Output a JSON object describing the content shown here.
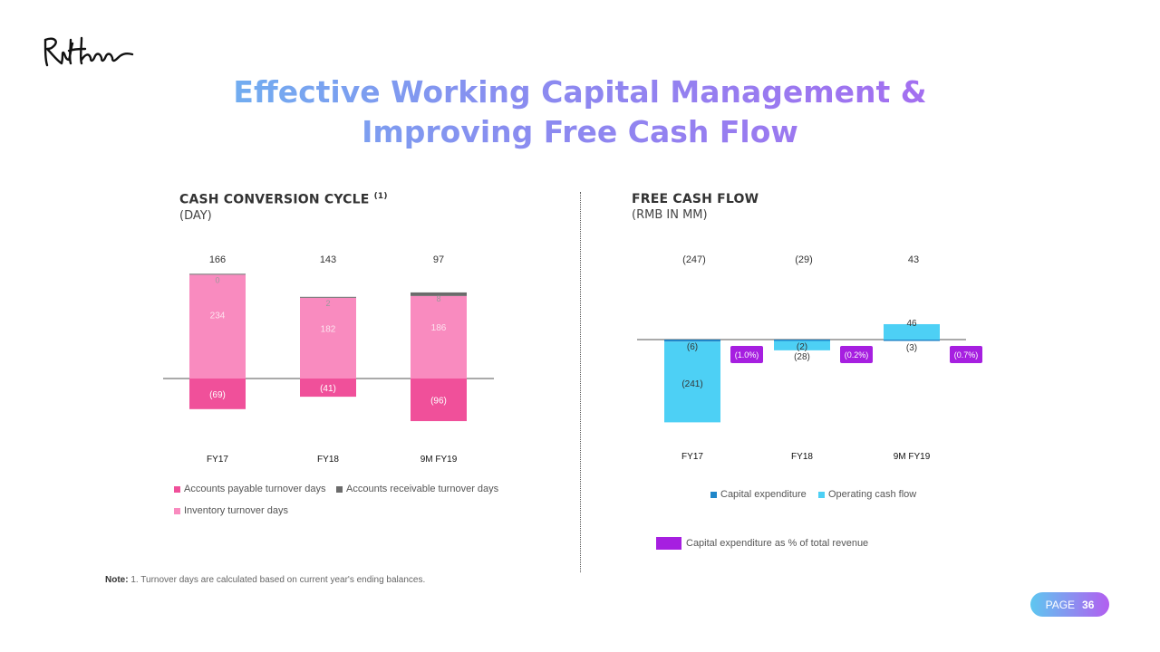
{
  "title": {
    "line1": "Effective Working Capital Management &",
    "line2": "Improving Free Cash Flow"
  },
  "ccc_header": {
    "title": "CASH CONVERSION CYCLE",
    "footnote_mark": "(1)",
    "unit": "(DAY)"
  },
  "fcf_header": {
    "title": "FREE CASH FLOW",
    "unit": "(RMB IN MM)"
  },
  "note": {
    "label": "Note:",
    "text": "1. Turnover days are calculated based on current year's ending balances."
  },
  "page": {
    "label": "PAGE",
    "number": "36"
  },
  "chart_data": [
    {
      "type": "bar",
      "stacked": true,
      "title": "CASH CONVERSION CYCLE",
      "categories": [
        "FY17",
        "FY18",
        "9M FY19"
      ],
      "totals": [
        166,
        143,
        97
      ],
      "total_labels": [
        "166",
        "143",
        "97"
      ],
      "series": [
        {
          "name": "Accounts payable turnover days",
          "values": [
            -69,
            -41,
            -96
          ],
          "labels": [
            "(69)",
            "(41)",
            "(96)"
          ],
          "color": "#f0509a"
        },
        {
          "name": "Accounts receivable turnover days",
          "values": [
            0,
            2,
            8
          ],
          "labels": [
            "0",
            "2",
            "8"
          ],
          "color": "#6b6b6b"
        },
        {
          "name": "Inventory turnover days",
          "values": [
            234,
            182,
            186
          ],
          "labels": [
            "234",
            "182",
            "186"
          ],
          "color": "#f98bbf"
        }
      ],
      "legend_position": "bottom"
    },
    {
      "type": "bar",
      "stacked": true,
      "title": "FREE CASH FLOW",
      "categories": [
        "FY17",
        "FY18",
        "9M FY19"
      ],
      "totals": [
        -247,
        -29,
        43
      ],
      "total_labels": [
        "(247)",
        "(29)",
        "43"
      ],
      "series": [
        {
          "name": "Capital expenditure",
          "values": [
            -6,
            -2,
            -3
          ],
          "labels": [
            "(6)",
            "(2)",
            "(3)"
          ],
          "color": "#1f86c9"
        },
        {
          "name": "Operating cash flow",
          "values": [
            -241,
            -28,
            46
          ],
          "labels": [
            "(241)",
            "(28)",
            "46"
          ],
          "color": "#4dd0f5"
        }
      ],
      "capex_pct": {
        "name": "Capital expenditure as % of total revenue",
        "values": [
          -1.0,
          -0.2,
          -0.7
        ],
        "labels": [
          "(1.0%)",
          "(0.2%)",
          "(0.7%)"
        ],
        "color": "#a61fe0"
      },
      "legend_position": "bottom"
    }
  ],
  "colors": {
    "title_gradient": [
      "#5ec7f0",
      "#b25ef0"
    ],
    "page_pill_gradient": [
      "#5ec7f0",
      "#b25ef0"
    ]
  },
  "icons": {
    "logo": "ruhnn-logo"
  }
}
